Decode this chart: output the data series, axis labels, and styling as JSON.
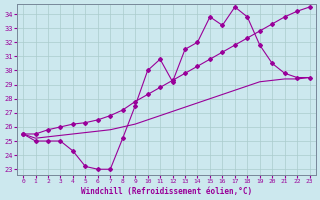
{
  "xlabel": "Windchill (Refroidissement éolien,°C)",
  "bg_color": "#cce8ee",
  "line_color": "#990099",
  "grid_color": "#aacccc",
  "xlim": [
    -0.5,
    23.5
  ],
  "ylim": [
    22.6,
    34.7
  ],
  "yticks": [
    23,
    24,
    25,
    26,
    27,
    28,
    29,
    30,
    31,
    32,
    33,
    34
  ],
  "xticks": [
    0,
    1,
    2,
    3,
    4,
    5,
    6,
    7,
    8,
    9,
    10,
    11,
    12,
    13,
    14,
    15,
    16,
    17,
    18,
    19,
    20,
    21,
    22,
    23
  ],
  "line1_x": [
    0,
    1,
    2,
    3,
    4,
    5,
    6,
    7,
    8,
    9,
    10,
    11,
    12,
    13,
    14,
    15,
    16,
    17,
    18,
    19,
    20,
    21,
    22,
    23
  ],
  "line1_y": [
    25.5,
    25.0,
    25.0,
    25.0,
    24.3,
    23.2,
    23.0,
    23.0,
    25.2,
    27.5,
    30.0,
    30.8,
    29.2,
    31.5,
    32.0,
    33.8,
    33.2,
    34.5,
    33.8,
    31.8,
    30.5,
    29.8,
    29.5,
    29.5
  ],
  "line2_x": [
    0,
    1,
    2,
    3,
    4,
    5,
    6,
    7,
    8,
    9,
    10,
    11,
    12,
    13,
    14,
    15,
    16,
    17,
    18,
    19,
    20,
    21,
    22,
    23
  ],
  "line2_y": [
    25.5,
    25.5,
    25.8,
    26.0,
    26.2,
    26.3,
    26.5,
    26.8,
    27.2,
    27.8,
    28.3,
    28.8,
    29.3,
    29.8,
    30.3,
    30.8,
    31.3,
    31.8,
    32.3,
    32.8,
    33.3,
    33.8,
    34.2,
    34.5
  ],
  "line3_x": [
    0,
    1,
    2,
    3,
    4,
    5,
    6,
    7,
    8,
    9,
    10,
    11,
    12,
    13,
    14,
    15,
    16,
    17,
    18,
    19,
    20,
    21,
    22,
    23
  ],
  "line3_y": [
    25.5,
    25.2,
    25.3,
    25.4,
    25.5,
    25.6,
    25.7,
    25.8,
    26.0,
    26.2,
    26.5,
    26.8,
    27.1,
    27.4,
    27.7,
    28.0,
    28.3,
    28.6,
    28.9,
    29.2,
    29.3,
    29.4,
    29.4,
    29.5
  ]
}
